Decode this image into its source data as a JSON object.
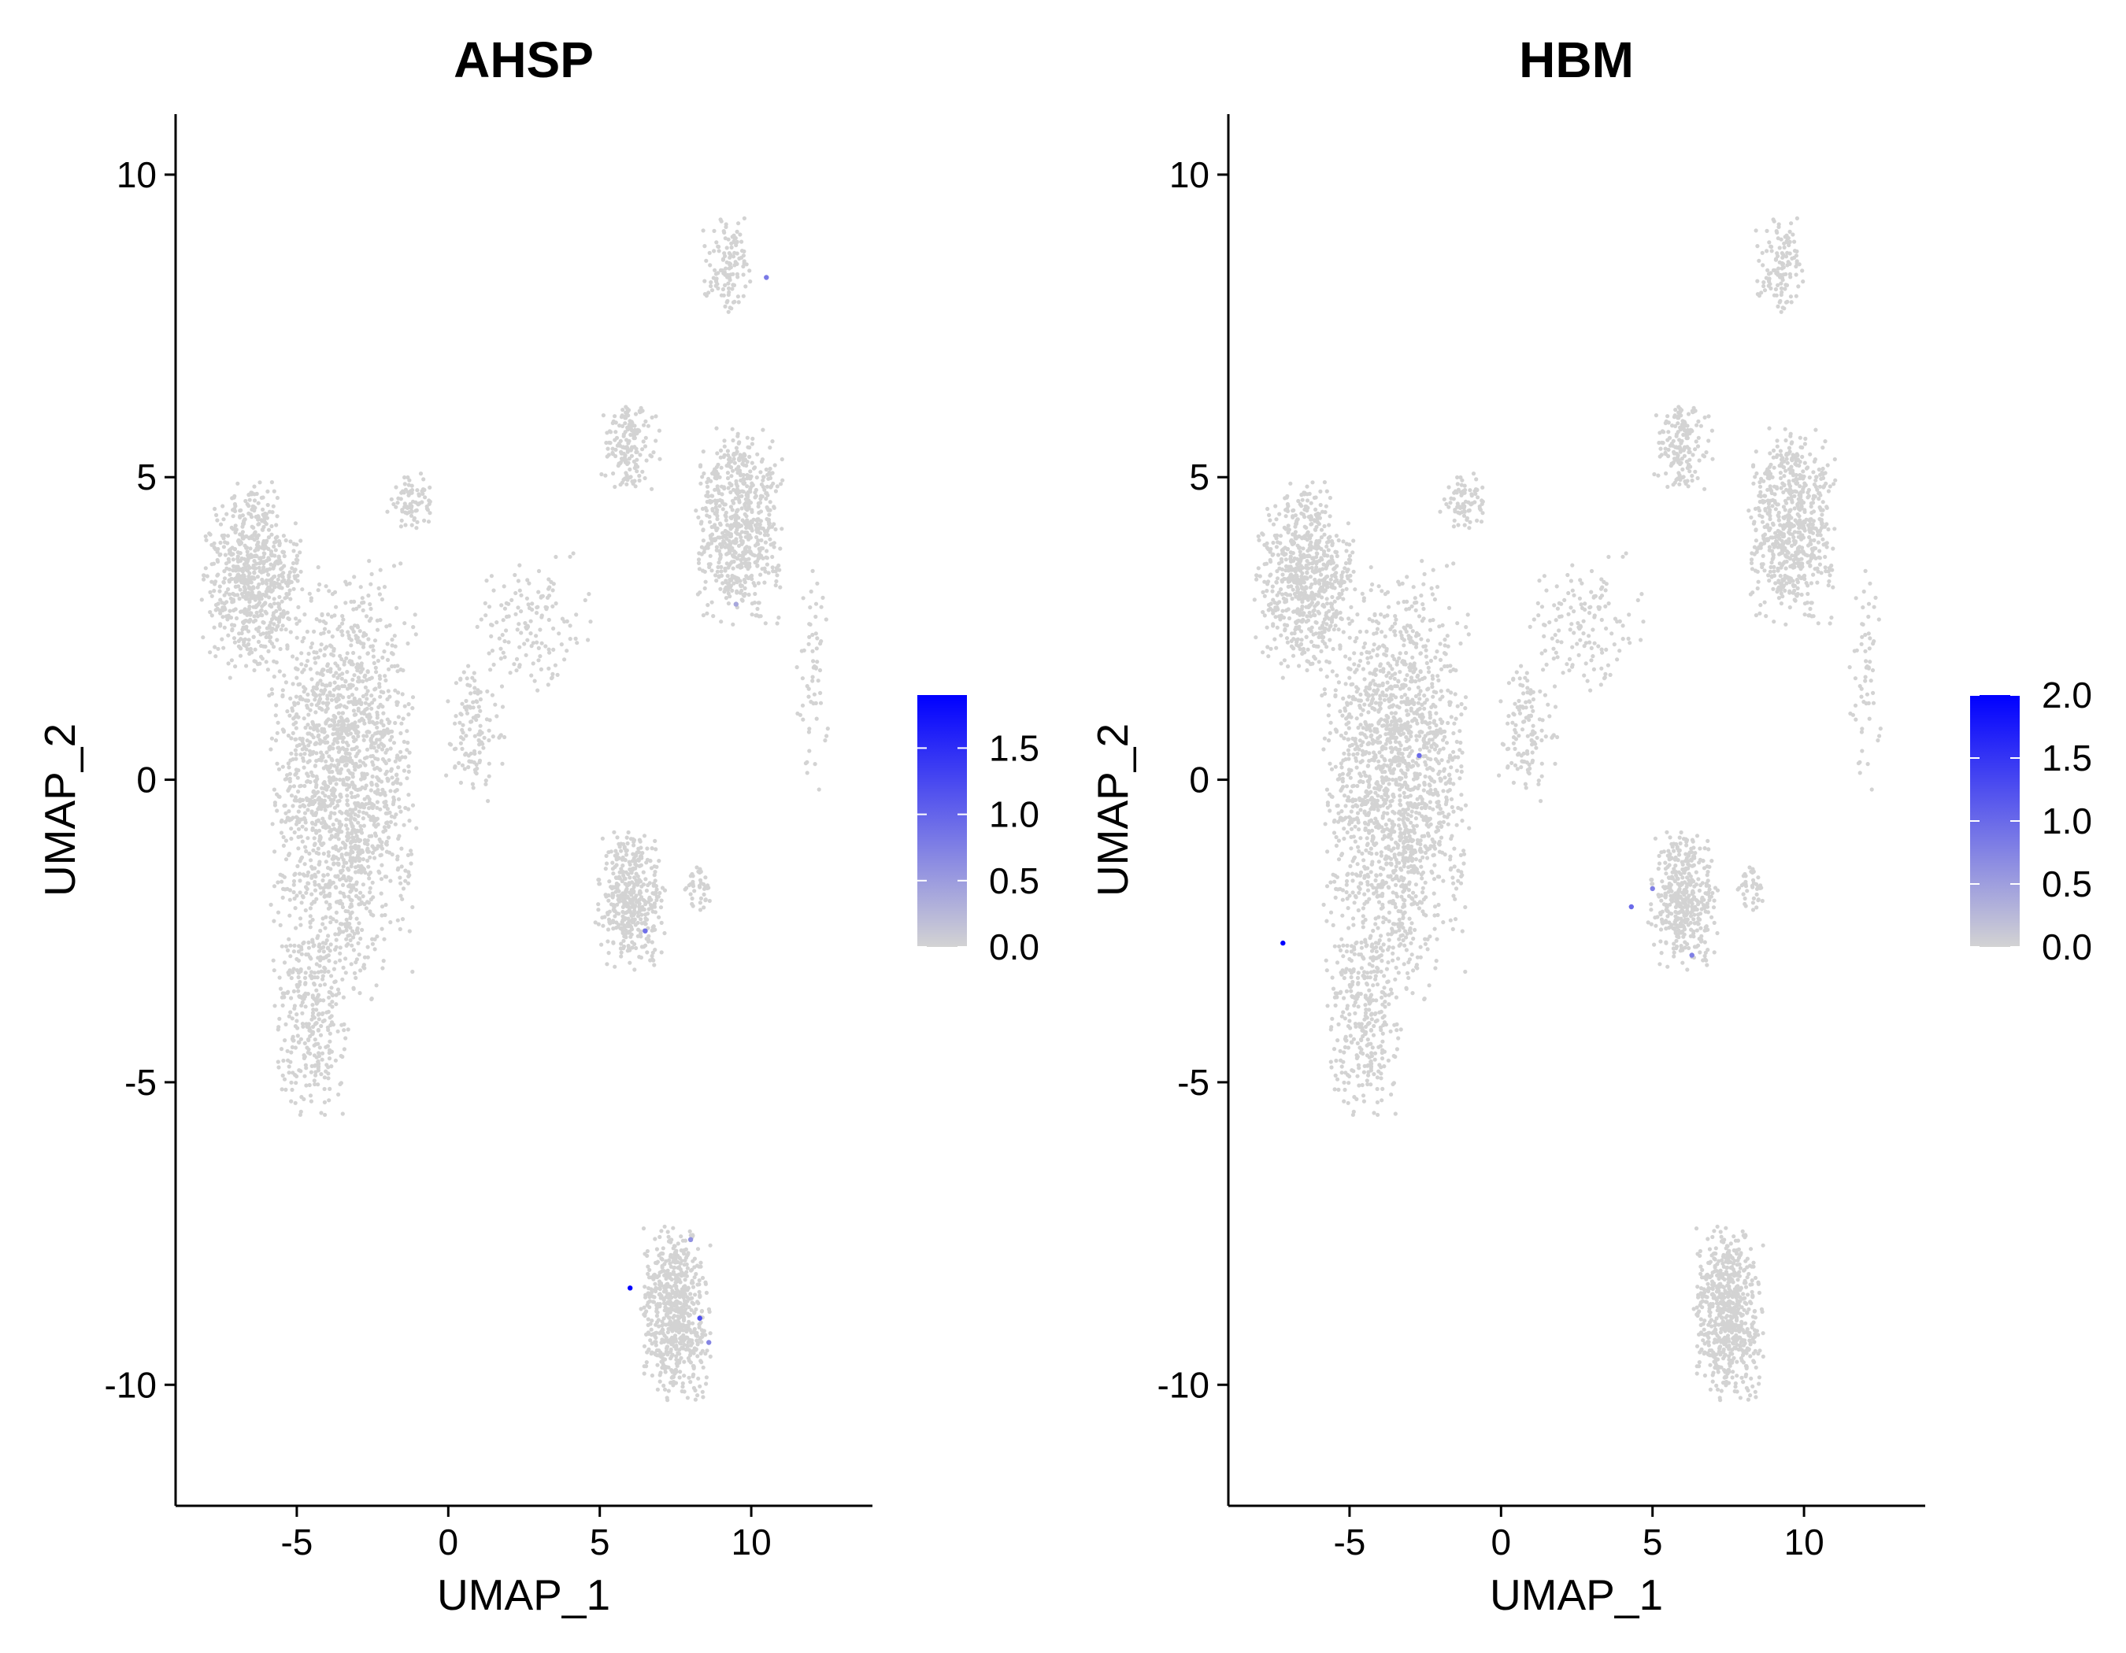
{
  "chart_data": [
    {
      "type": "scatter",
      "title": "AHSP",
      "xlabel": "UMAP_1",
      "ylabel": "UMAP_2",
      "xlim": [
        -9,
        14
      ],
      "ylim": [
        -12,
        11
      ],
      "xticks": [
        -5,
        0,
        5,
        10
      ],
      "yticks": [
        -10,
        -5,
        0,
        5,
        10
      ],
      "xtick_labels": [
        "-5",
        "0",
        "5",
        "10"
      ],
      "ytick_labels": [
        "-10",
        "-5",
        "0",
        "5",
        "10"
      ],
      "grid": false,
      "legend_position": "right",
      "point_color_low": "#d3d3d3",
      "point_color_high": "#0000ff",
      "colorbar": {
        "min": 0,
        "max": 1.9,
        "ticks": [
          0.0,
          0.5,
          1.0,
          1.5
        ],
        "tick_labels": [
          "0.0",
          "0.5",
          "1.0",
          "1.5"
        ]
      },
      "clusters": [
        {
          "cx": -6.5,
          "cy": 3.3,
          "sx": 1.0,
          "sy": 1.0,
          "n": 700
        },
        {
          "cx": -3.5,
          "cy": 0.0,
          "sx": 1.5,
          "sy": 2.2,
          "n": 1700
        },
        {
          "cx": -4.5,
          "cy": -4.0,
          "sx": 0.8,
          "sy": 1.0,
          "n": 300
        },
        {
          "cx": -1.2,
          "cy": 4.6,
          "sx": 0.5,
          "sy": 0.3,
          "n": 80
        },
        {
          "cx": 9.6,
          "cy": 4.2,
          "sx": 0.9,
          "sy": 1.0,
          "n": 650
        },
        {
          "cx": 9.2,
          "cy": 8.5,
          "sx": 0.5,
          "sy": 0.5,
          "n": 120
        },
        {
          "cx": 6.0,
          "cy": 5.5,
          "sx": 0.6,
          "sy": 0.5,
          "n": 160
        },
        {
          "cx": 6.0,
          "cy": -2.0,
          "sx": 0.7,
          "sy": 0.7,
          "n": 420
        },
        {
          "cx": 8.3,
          "cy": -1.8,
          "sx": 0.3,
          "sy": 0.3,
          "n": 40
        },
        {
          "cx": 7.5,
          "cy": -8.8,
          "sx": 0.7,
          "sy": 0.9,
          "n": 650
        },
        {
          "cx": 0.9,
          "cy": 0.8,
          "sx": 0.6,
          "sy": 0.8,
          "n": 120
        },
        {
          "cx": 2.8,
          "cy": 2.6,
          "sx": 1.2,
          "sy": 0.7,
          "n": 140
        },
        {
          "cx": 12.0,
          "cy": 1.8,
          "sx": 0.3,
          "sy": 1.2,
          "n": 60
        }
      ],
      "expressing_cells": [
        {
          "x": 10.5,
          "y": 8.3,
          "value": 0.8
        },
        {
          "x": 6.0,
          "y": -8.4,
          "value": 1.9
        },
        {
          "x": 8.3,
          "y": -8.9,
          "value": 1.2
        },
        {
          "x": 8.6,
          "y": -9.3,
          "value": 0.7
        },
        {
          "x": 8.0,
          "y": -7.6,
          "value": 0.6
        },
        {
          "x": 6.5,
          "y": -2.5,
          "value": 0.9
        },
        {
          "x": 9.5,
          "y": 2.9,
          "value": 0.4
        }
      ]
    },
    {
      "type": "scatter",
      "title": "HBM",
      "xlabel": "UMAP_1",
      "ylabel": "UMAP_2",
      "xlim": [
        -9,
        14
      ],
      "ylim": [
        -12,
        11
      ],
      "xticks": [
        -5,
        0,
        5,
        10
      ],
      "yticks": [
        -10,
        -5,
        0,
        5,
        10
      ],
      "xtick_labels": [
        "-5",
        "0",
        "5",
        "10"
      ],
      "ytick_labels": [
        "-10",
        "-5",
        "0",
        "5",
        "10"
      ],
      "grid": false,
      "legend_position": "right",
      "point_color_low": "#d3d3d3",
      "point_color_high": "#0000ff",
      "colorbar": {
        "min": 0,
        "max": 2.0,
        "ticks": [
          0.0,
          0.5,
          1.0,
          1.5,
          2.0
        ],
        "tick_labels": [
          "0.0",
          "0.5",
          "1.0",
          "1.5",
          "2.0"
        ]
      },
      "clusters": [
        {
          "cx": -6.5,
          "cy": 3.3,
          "sx": 1.0,
          "sy": 1.0,
          "n": 700
        },
        {
          "cx": -3.5,
          "cy": 0.0,
          "sx": 1.5,
          "sy": 2.2,
          "n": 1700
        },
        {
          "cx": -4.5,
          "cy": -4.0,
          "sx": 0.8,
          "sy": 1.0,
          "n": 300
        },
        {
          "cx": -1.2,
          "cy": 4.6,
          "sx": 0.5,
          "sy": 0.3,
          "n": 80
        },
        {
          "cx": 9.6,
          "cy": 4.2,
          "sx": 0.9,
          "sy": 1.0,
          "n": 650
        },
        {
          "cx": 9.2,
          "cy": 8.5,
          "sx": 0.5,
          "sy": 0.5,
          "n": 120
        },
        {
          "cx": 6.0,
          "cy": 5.5,
          "sx": 0.6,
          "sy": 0.5,
          "n": 160
        },
        {
          "cx": 6.0,
          "cy": -2.0,
          "sx": 0.7,
          "sy": 0.7,
          "n": 420
        },
        {
          "cx": 8.3,
          "cy": -1.8,
          "sx": 0.3,
          "sy": 0.3,
          "n": 40
        },
        {
          "cx": 7.5,
          "cy": -8.8,
          "sx": 0.7,
          "sy": 0.9,
          "n": 650
        },
        {
          "cx": 0.9,
          "cy": 0.8,
          "sx": 0.6,
          "sy": 0.8,
          "n": 120
        },
        {
          "cx": 2.8,
          "cy": 2.6,
          "sx": 1.2,
          "sy": 0.7,
          "n": 140
        },
        {
          "cx": 12.0,
          "cy": 1.8,
          "sx": 0.3,
          "sy": 1.2,
          "n": 60
        }
      ],
      "expressing_cells": [
        {
          "x": -7.2,
          "y": -2.7,
          "value": 2.0
        },
        {
          "x": -2.7,
          "y": 0.4,
          "value": 1.0
        },
        {
          "x": 4.3,
          "y": -2.1,
          "value": 1.0
        },
        {
          "x": 5.0,
          "y": -1.8,
          "value": 0.8
        },
        {
          "x": 6.3,
          "y": -2.9,
          "value": 0.8
        }
      ]
    }
  ]
}
